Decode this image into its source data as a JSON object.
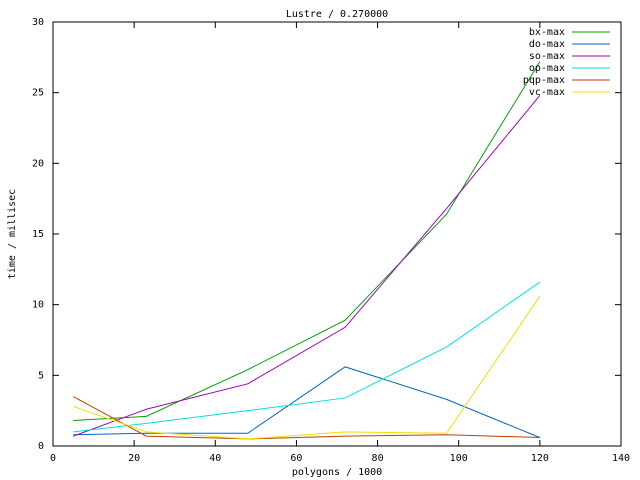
{
  "chart_data": {
    "type": "line",
    "title": "Lustre / 0.270000",
    "x_label": "polygons / 1000",
    "y_label": "time / millisec",
    "x": [
      5,
      23,
      48,
      72,
      97,
      120
    ],
    "series": [
      {
        "name": "bx-max",
        "color": "#00a000",
        "values": [
          1.8,
          2.1,
          5.4,
          8.9,
          16.4,
          27.2
        ]
      },
      {
        "name": "do-max",
        "color": "#0066cc",
        "values": [
          0.8,
          0.9,
          0.9,
          5.6,
          3.3,
          0.6
        ]
      },
      {
        "name": "so-max",
        "color": "#a000c0",
        "values": [
          0.7,
          2.6,
          4.4,
          8.4,
          16.8,
          24.8
        ]
      },
      {
        "name": "op-max",
        "color": "#00e0e0",
        "values": [
          1.0,
          1.6,
          2.5,
          3.4,
          7.0,
          11.6
        ]
      },
      {
        "name": "pqp-max",
        "color": "#c04000",
        "values": [
          3.5,
          0.7,
          0.5,
          0.7,
          0.8,
          0.6
        ]
      },
      {
        "name": "vc-max",
        "color": "#f0e000",
        "values": [
          2.8,
          1.0,
          0.5,
          1.0,
          0.9,
          10.6
        ]
      }
    ],
    "xlim": [
      0,
      140
    ],
    "xticks": [
      0,
      20,
      40,
      60,
      80,
      100,
      120,
      140
    ],
    "ylim": [
      0,
      30
    ],
    "yticks": [
      0,
      5,
      10,
      15,
      20,
      25,
      30
    ],
    "legend": "top-right",
    "grid": false
  }
}
